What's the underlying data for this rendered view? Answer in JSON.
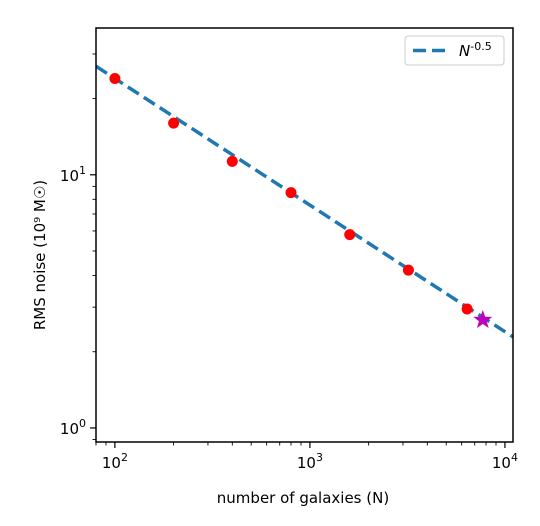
{
  "chart_data": {
    "type": "scatter",
    "title": "",
    "xlabel": "number of galaxies (N)",
    "ylabel": "RMS noise (10⁹ M☉)",
    "xscale": "log",
    "yscale": "log",
    "xlim": [
      80,
      11000
    ],
    "ylim": [
      0.88,
      38
    ],
    "grid": false,
    "legend": {
      "placement": "top-right",
      "entries": [
        "N^-0.5"
      ]
    },
    "x_ticks": [
      {
        "value": 100,
        "base": "10",
        "exp": "2"
      },
      {
        "value": 1000,
        "base": "10",
        "exp": "3"
      },
      {
        "value": 10000,
        "base": "10",
        "exp": "4"
      }
    ],
    "y_ticks": [
      {
        "value": 1,
        "base": "10",
        "exp": "0"
      },
      {
        "value": 10,
        "base": "10",
        "exp": "1"
      }
    ],
    "series": [
      {
        "kind": "points",
        "marker": "circle",
        "color": "#ff0000",
        "x": [
          100,
          200,
          400,
          800,
          1600,
          3200,
          6400
        ],
        "y": [
          24.0,
          16.0,
          11.3,
          8.5,
          5.8,
          4.2,
          2.95
        ]
      },
      {
        "kind": "point",
        "marker": "star",
        "color": "#bf00bf",
        "x": [
          7700
        ],
        "y": [
          2.67
        ]
      },
      {
        "name": "N^-0.5",
        "kind": "line",
        "style": "dashed",
        "color": "#1f77b4",
        "coefficient": 240,
        "exponent": -0.5,
        "x": [
          80,
          11000
        ]
      }
    ]
  }
}
